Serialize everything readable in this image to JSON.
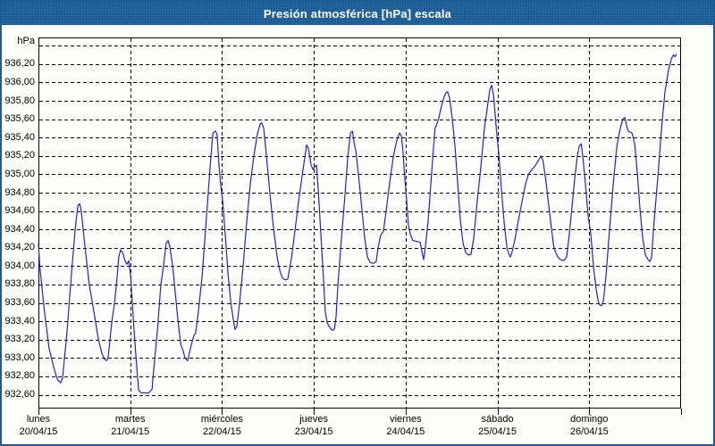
{
  "window": {
    "title": "Presión atmosférica [hPa] escala"
  },
  "colors": {
    "title_bar": "#2368a3",
    "window_frame": "#1d5c94",
    "line": "#2323c8",
    "grid": "#000000",
    "text": "#000000"
  },
  "chart_data": {
    "type": "line",
    "title": "Presión atmosférica [hPa] escala",
    "xlabel": "",
    "ylabel": "hPa",
    "y_axis_unit_label": "hPa",
    "x_unit": "hours since lunes 20/04/15 00:00",
    "xlim": [
      0,
      168
    ],
    "ylim": [
      932.45,
      936.49
    ],
    "grid": "dashed",
    "legend": "none",
    "y_gridlines": [
      {
        "v": 936.4,
        "label": ""
      },
      {
        "v": 936.2,
        "label": "936,20"
      },
      {
        "v": 936.0,
        "label": "936,00"
      },
      {
        "v": 935.8,
        "label": "935,80"
      },
      {
        "v": 935.6,
        "label": "935,60"
      },
      {
        "v": 935.4,
        "label": "935,40"
      },
      {
        "v": 935.2,
        "label": "935,20"
      },
      {
        "v": 935.0,
        "label": "935,00"
      },
      {
        "v": 934.8,
        "label": "934,80"
      },
      {
        "v": 934.6,
        "label": "934,60"
      },
      {
        "v": 934.4,
        "label": "934,40"
      },
      {
        "v": 934.2,
        "label": "934,20"
      },
      {
        "v": 934.0,
        "label": "934,00"
      },
      {
        "v": 933.8,
        "label": "933,80"
      },
      {
        "v": 933.6,
        "label": "933,60"
      },
      {
        "v": 933.4,
        "label": "933,40"
      },
      {
        "v": 933.2,
        "label": "933,20"
      },
      {
        "v": 933.0,
        "label": "933,00"
      },
      {
        "v": 932.8,
        "label": "932,80"
      },
      {
        "v": 932.6,
        "label": "932,60"
      }
    ],
    "x_ticks": [
      {
        "hour": 0,
        "day": "lunes",
        "date": "20/04/15"
      },
      {
        "hour": 24,
        "day": "martes",
        "date": "21/04/15"
      },
      {
        "hour": 48,
        "day": "miércoles",
        "date": "22/04/15"
      },
      {
        "hour": 72,
        "day": "jueves",
        "date": "23/04/15"
      },
      {
        "hour": 96,
        "day": "viernes",
        "date": "24/04/15"
      },
      {
        "hour": 120,
        "day": "sábado",
        "date": "25/04/15"
      },
      {
        "hour": 144,
        "day": "domingo",
        "date": "26/04/15"
      },
      {
        "hour": 168,
        "day": "",
        "date": ""
      }
    ],
    "series": [
      {
        "name": "Presión atmosférica",
        "unit": "hPa",
        "points": [
          [
            0,
            934.25
          ],
          [
            0.3,
            934.02
          ],
          [
            1.6,
            933.5
          ],
          [
            2.8,
            933.1
          ],
          [
            4,
            932.9
          ],
          [
            4.7,
            932.8
          ],
          [
            5.1,
            932.76
          ],
          [
            5.8,
            932.73
          ],
          [
            6.3,
            932.78
          ],
          [
            7.5,
            933.3
          ],
          [
            8.6,
            933.9
          ],
          [
            9.6,
            934.4
          ],
          [
            10.3,
            934.66
          ],
          [
            10.8,
            934.68
          ],
          [
            11.2,
            934.6
          ],
          [
            12.2,
            934.2
          ],
          [
            13.3,
            933.8
          ],
          [
            14.5,
            933.5
          ],
          [
            15.7,
            933.2
          ],
          [
            16.6,
            933.05
          ],
          [
            17.3,
            932.99
          ],
          [
            17.8,
            932.97
          ],
          [
            18.2,
            933.0
          ],
          [
            19.2,
            933.4
          ],
          [
            19.9,
            933.6
          ],
          [
            20.6,
            933.9
          ],
          [
            21,
            934.1
          ],
          [
            21.5,
            934.18
          ],
          [
            22,
            934.15
          ],
          [
            22.7,
            934.05
          ],
          [
            23.1,
            934.02
          ],
          [
            23.6,
            934.06
          ],
          [
            24.1,
            933.9
          ],
          [
            25,
            933.3
          ],
          [
            25.7,
            932.9
          ],
          [
            26.2,
            932.65
          ],
          [
            26.9,
            932.62
          ],
          [
            28.8,
            932.62
          ],
          [
            29.7,
            932.66
          ],
          [
            30.2,
            932.9
          ],
          [
            31.1,
            933.3
          ],
          [
            32,
            933.8
          ],
          [
            32.7,
            934.0
          ],
          [
            33.4,
            934.25
          ],
          [
            33.9,
            934.28
          ],
          [
            34.4,
            934.2
          ],
          [
            35.1,
            934.0
          ],
          [
            35.8,
            933.7
          ],
          [
            36.5,
            933.4
          ],
          [
            37.2,
            933.15
          ],
          [
            37.9,
            933.07
          ],
          [
            38.3,
            933.0
          ],
          [
            39,
            932.97
          ],
          [
            40,
            933.15
          ],
          [
            40.7,
            933.25
          ],
          [
            41.1,
            933.27
          ],
          [
            41.8,
            933.5
          ],
          [
            42.8,
            933.9
          ],
          [
            43.7,
            934.4
          ],
          [
            44.4,
            934.8
          ],
          [
            45.1,
            935.2
          ],
          [
            45.6,
            935.45
          ],
          [
            46.3,
            935.47
          ],
          [
            46.7,
            935.43
          ],
          [
            47.2,
            935.1
          ],
          [
            47.7,
            934.87
          ],
          [
            48.2,
            934.7
          ],
          [
            48.9,
            934.3
          ],
          [
            49.6,
            933.9
          ],
          [
            50.3,
            933.6
          ],
          [
            51,
            933.4
          ],
          [
            51.4,
            933.31
          ],
          [
            51.9,
            933.35
          ],
          [
            52.6,
            933.6
          ],
          [
            53.5,
            934.0
          ],
          [
            54.5,
            934.5
          ],
          [
            55.4,
            934.9
          ],
          [
            56.3,
            935.2
          ],
          [
            57.3,
            935.45
          ],
          [
            58,
            935.55
          ],
          [
            58.4,
            935.56
          ],
          [
            58.9,
            935.5
          ],
          [
            59.6,
            935.2
          ],
          [
            60.5,
            934.8
          ],
          [
            61.5,
            934.4
          ],
          [
            62.4,
            934.1
          ],
          [
            63.1,
            933.95
          ],
          [
            63.8,
            933.87
          ],
          [
            64.5,
            933.85
          ],
          [
            65.2,
            933.86
          ],
          [
            66.2,
            934.1
          ],
          [
            67.1,
            934.4
          ],
          [
            68,
            934.7
          ],
          [
            69,
            935.0
          ],
          [
            69.7,
            935.2
          ],
          [
            70.1,
            935.32
          ],
          [
            70.6,
            935.28
          ],
          [
            71.3,
            935.1
          ],
          [
            71.8,
            935.05
          ],
          [
            72.2,
            935.08
          ],
          [
            72.7,
            935.1
          ],
          [
            73.2,
            934.8
          ],
          [
            73.9,
            934.3
          ],
          [
            74.6,
            933.8
          ],
          [
            75,
            933.5
          ],
          [
            75.5,
            933.38
          ],
          [
            76.2,
            933.33
          ],
          [
            76.9,
            933.3
          ],
          [
            77.4,
            933.32
          ],
          [
            77.8,
            933.45
          ],
          [
            78.3,
            933.8
          ],
          [
            79.2,
            934.3
          ],
          [
            80.2,
            934.8
          ],
          [
            80.9,
            935.2
          ],
          [
            81.6,
            935.45
          ],
          [
            82.1,
            935.47
          ],
          [
            82.5,
            935.35
          ],
          [
            83,
            935.25
          ],
          [
            83.9,
            934.9
          ],
          [
            84.6,
            934.6
          ],
          [
            85.3,
            934.3
          ],
          [
            86,
            934.1
          ],
          [
            86.7,
            934.04
          ],
          [
            87.6,
            934.03
          ],
          [
            88.3,
            934.05
          ],
          [
            88.8,
            934.2
          ],
          [
            89.5,
            934.34
          ],
          [
            90.2,
            934.38
          ],
          [
            90.9,
            934.6
          ],
          [
            91.8,
            934.9
          ],
          [
            92.8,
            935.2
          ],
          [
            93.7,
            935.37
          ],
          [
            94.4,
            935.45
          ],
          [
            94.9,
            935.42
          ],
          [
            95.3,
            935.25
          ],
          [
            95.8,
            934.95
          ],
          [
            96.3,
            934.7
          ],
          [
            96.7,
            934.45
          ],
          [
            97.2,
            934.35
          ],
          [
            97.9,
            934.28
          ],
          [
            98.8,
            934.27
          ],
          [
            99.8,
            934.26
          ],
          [
            100.3,
            934.15
          ],
          [
            100.7,
            934.07
          ],
          [
            101.2,
            934.22
          ],
          [
            101.9,
            934.5
          ],
          [
            102.6,
            934.9
          ],
          [
            103.3,
            935.3
          ],
          [
            103.7,
            935.5
          ],
          [
            104.2,
            935.55
          ],
          [
            104.7,
            935.62
          ],
          [
            105.4,
            935.75
          ],
          [
            106.1,
            935.85
          ],
          [
            106.6,
            935.89
          ],
          [
            107,
            935.9
          ],
          [
            107.5,
            935.83
          ],
          [
            108.2,
            935.6
          ],
          [
            108.9,
            935.3
          ],
          [
            109.6,
            934.9
          ],
          [
            110.3,
            934.5
          ],
          [
            111,
            934.25
          ],
          [
            111.7,
            934.15
          ],
          [
            112.4,
            934.12
          ],
          [
            113.1,
            934.13
          ],
          [
            113.8,
            934.3
          ],
          [
            114.7,
            934.7
          ],
          [
            115.7,
            935.1
          ],
          [
            116.6,
            935.5
          ],
          [
            117.6,
            935.8
          ],
          [
            118,
            935.92
          ],
          [
            118.5,
            935.97
          ],
          [
            119,
            935.85
          ],
          [
            119.7,
            935.5
          ],
          [
            120.4,
            935.2
          ],
          [
            121.1,
            934.8
          ],
          [
            121.8,
            934.45
          ],
          [
            122.5,
            934.2
          ],
          [
            123,
            934.13
          ],
          [
            123.4,
            934.1
          ],
          [
            123.9,
            934.17
          ],
          [
            124.6,
            934.3
          ],
          [
            125.5,
            934.5
          ],
          [
            126.5,
            934.72
          ],
          [
            127.4,
            934.9
          ],
          [
            128.1,
            935.0
          ],
          [
            128.8,
            935.04
          ],
          [
            129.8,
            935.09
          ],
          [
            130.7,
            935.15
          ],
          [
            131.4,
            935.2
          ],
          [
            131.9,
            935.15
          ],
          [
            132.6,
            934.95
          ],
          [
            133.3,
            934.7
          ],
          [
            134,
            934.45
          ],
          [
            134.7,
            934.22
          ],
          [
            135.1,
            934.16
          ],
          [
            135.8,
            934.1
          ],
          [
            136.5,
            934.07
          ],
          [
            137.4,
            934.06
          ],
          [
            138.1,
            934.1
          ],
          [
            138.8,
            934.35
          ],
          [
            139.5,
            934.65
          ],
          [
            140.2,
            934.95
          ],
          [
            140.9,
            935.2
          ],
          [
            141.4,
            935.31
          ],
          [
            141.9,
            935.33
          ],
          [
            142.3,
            935.2
          ],
          [
            143,
            934.9
          ],
          [
            143.7,
            934.55
          ],
          [
            144.4,
            934.35
          ],
          [
            145.1,
            934.0
          ],
          [
            145.8,
            933.75
          ],
          [
            146.3,
            933.63
          ],
          [
            146.7,
            933.58
          ],
          [
            147.2,
            933.57
          ],
          [
            147.7,
            933.62
          ],
          [
            148.4,
            933.9
          ],
          [
            149.3,
            934.4
          ],
          [
            150.3,
            934.9
          ],
          [
            151.2,
            935.3
          ],
          [
            152.1,
            935.5
          ],
          [
            152.8,
            935.6
          ],
          [
            153.3,
            935.62
          ],
          [
            153.8,
            935.53
          ],
          [
            154.2,
            935.47
          ],
          [
            155.2,
            935.45
          ],
          [
            155.9,
            935.33
          ],
          [
            156.6,
            935.0
          ],
          [
            157.3,
            934.6
          ],
          [
            158,
            934.3
          ],
          [
            158.7,
            934.12
          ],
          [
            159.4,
            934.07
          ],
          [
            159.9,
            934.05
          ],
          [
            160.3,
            934.1
          ],
          [
            161,
            934.5
          ],
          [
            162,
            935.0
          ],
          [
            162.9,
            935.5
          ],
          [
            163.8,
            935.9
          ],
          [
            164.8,
            936.15
          ],
          [
            165.5,
            936.26
          ],
          [
            166,
            936.3
          ],
          [
            166.4,
            936.28
          ],
          [
            166.8,
            936.31
          ]
        ]
      }
    ]
  }
}
